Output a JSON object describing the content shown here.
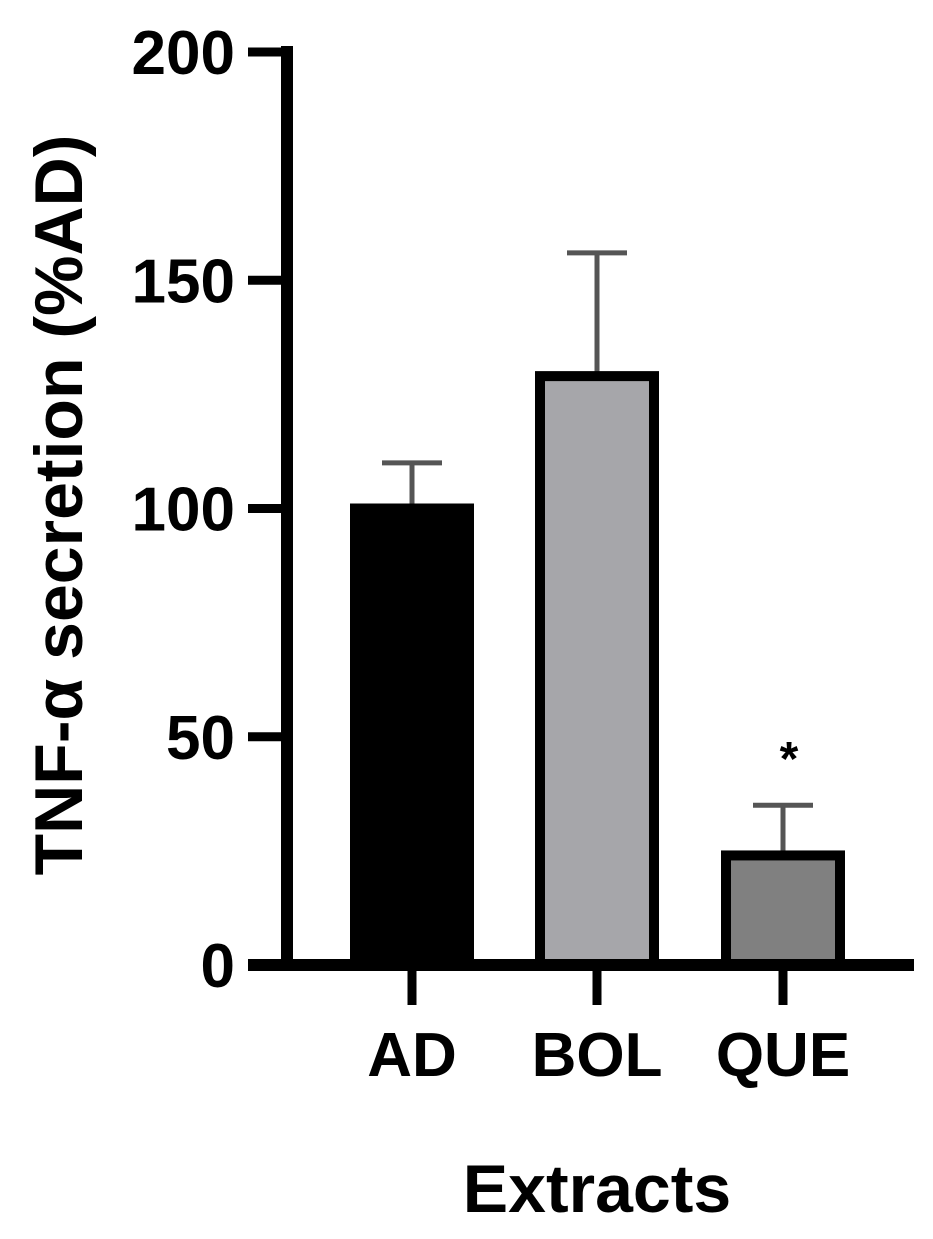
{
  "chart_data": {
    "type": "bar",
    "categories": [
      "AD",
      "BOL",
      "QUE"
    ],
    "values": [
      100,
      129,
      24
    ],
    "errors": [
      10,
      27,
      11
    ],
    "colors": [
      "#000000",
      "#a6a6aa",
      "#808080"
    ],
    "xlabel": "Extracts",
    "ylabel": "TNF-α secretion (%AD)",
    "ylim": [
      0,
      200
    ],
    "yticks": [
      0,
      50,
      100,
      150,
      200
    ],
    "annotations": [
      {
        "category": "QUE",
        "text": "*"
      }
    ],
    "grid": false
  }
}
